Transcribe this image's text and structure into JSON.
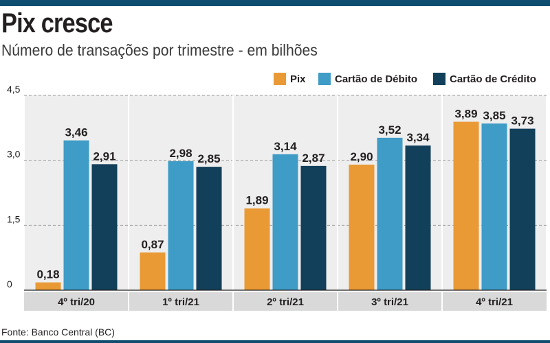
{
  "header": {
    "title": "Pix cresce",
    "subtitle": "Número de transações por trimestre - em bilhões"
  },
  "footer": {
    "source": "Fonte: Banco Central (BC)"
  },
  "colors": {
    "pix": "#e99a35",
    "debito": "#3f9cc7",
    "credito": "#123f59",
    "panel": "#eeeeee",
    "brand": "#0f4d70"
  },
  "chart_data": {
    "type": "bar",
    "categories": [
      "4º tri/20",
      "1º tri/21",
      "2º tri/21",
      "3º tri/21",
      "4º tri/21"
    ],
    "series": [
      {
        "name": "Pix",
        "values": [
          0.18,
          0.87,
          1.89,
          2.9,
          3.89
        ],
        "labels": [
          "0,18",
          "0,87",
          "1,89",
          "2,90",
          "3,89"
        ],
        "color": "#e99a35"
      },
      {
        "name": "Cartão de Débito",
        "values": [
          3.46,
          2.98,
          3.14,
          3.52,
          3.85
        ],
        "labels": [
          "3,46",
          "2,98",
          "3,14",
          "3,52",
          "3,85"
        ],
        "color": "#3f9cc7"
      },
      {
        "name": "Cartão de Crédito",
        "values": [
          2.91,
          2.85,
          2.87,
          3.34,
          3.73
        ],
        "labels": [
          "2,91",
          "2,85",
          "2,87",
          "3,34",
          "3,73"
        ],
        "color": "#123f59"
      }
    ],
    "y_ticks": [
      0,
      1.5,
      3.0,
      4.5
    ],
    "y_tick_labels": [
      "0",
      "1,5",
      "3,0",
      "4,5"
    ],
    "ylim": [
      0,
      4.5
    ],
    "grid": true,
    "legend_position": "top-right"
  }
}
